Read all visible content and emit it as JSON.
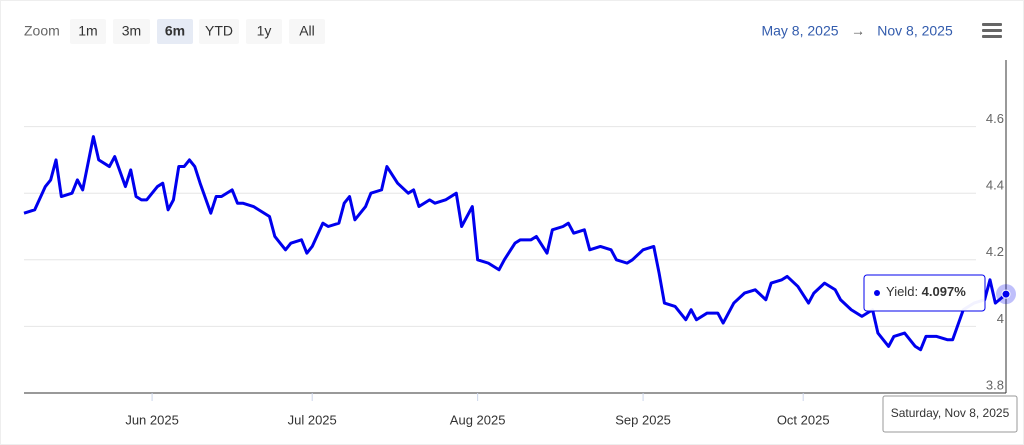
{
  "chart_data": {
    "type": "line",
    "zoom_label": "Zoom",
    "zoom_buttons": [
      "1m",
      "3m",
      "6m",
      "YTD",
      "1y",
      "All"
    ],
    "zoom_selected": "6m",
    "range_start": "May 8, 2025",
    "range_separator": "→",
    "range_end": "Nov 8, 2025",
    "x": [
      "2025-05-08",
      "2025-05-10",
      "2025-05-12",
      "2025-05-13",
      "2025-05-14",
      "2025-05-15",
      "2025-05-17",
      "2025-05-18",
      "2025-05-19",
      "2025-05-21",
      "2025-05-22",
      "2025-05-24",
      "2025-05-25",
      "2025-05-27",
      "2025-05-28",
      "2025-05-29",
      "2025-05-30",
      "2025-05-31",
      "2025-06-02",
      "2025-06-03",
      "2025-06-04",
      "2025-06-05",
      "2025-06-06",
      "2025-06-07",
      "2025-06-08",
      "2025-06-09",
      "2025-06-10",
      "2025-06-12",
      "2025-06-13",
      "2025-06-14",
      "2025-06-16",
      "2025-06-17",
      "2025-06-18",
      "2025-06-20",
      "2025-06-21",
      "2025-06-23",
      "2025-06-24",
      "2025-06-25",
      "2025-06-26",
      "2025-06-27",
      "2025-06-29",
      "2025-06-30",
      "2025-07-01",
      "2025-07-03",
      "2025-07-04",
      "2025-07-06",
      "2025-07-07",
      "2025-07-08",
      "2025-07-09",
      "2025-07-11",
      "2025-07-12",
      "2025-07-14",
      "2025-07-15",
      "2025-07-17",
      "2025-07-19",
      "2025-07-20",
      "2025-07-21",
      "2025-07-23",
      "2025-07-24",
      "2025-07-26",
      "2025-07-28",
      "2025-07-29",
      "2025-07-31",
      "2025-08-01",
      "2025-08-03",
      "2025-08-05",
      "2025-08-06",
      "2025-08-08",
      "2025-08-09",
      "2025-08-11",
      "2025-08-12",
      "2025-08-14",
      "2025-08-15",
      "2025-08-17",
      "2025-08-18",
      "2025-08-19",
      "2025-08-21",
      "2025-08-22",
      "2025-08-24",
      "2025-08-26",
      "2025-08-27",
      "2025-08-29",
      "2025-08-30",
      "2025-09-01",
      "2025-09-03",
      "2025-09-04",
      "2025-09-05",
      "2025-09-07",
      "2025-09-09",
      "2025-09-10",
      "2025-09-11",
      "2025-09-13",
      "2025-09-15",
      "2025-09-16",
      "2025-09-18",
      "2025-09-20",
      "2025-09-22",
      "2025-09-24",
      "2025-09-25",
      "2025-09-27",
      "2025-09-28",
      "2025-09-30",
      "2025-10-02",
      "2025-10-03",
      "2025-10-05",
      "2025-10-07",
      "2025-10-08",
      "2025-10-10",
      "2025-10-12",
      "2025-10-14",
      "2025-10-15",
      "2025-10-17",
      "2025-10-18",
      "2025-10-20",
      "2025-10-22",
      "2025-10-23",
      "2025-10-24",
      "2025-10-26",
      "2025-10-28",
      "2025-10-29",
      "2025-10-31",
      "2025-11-02",
      "2025-11-04",
      "2025-11-05",
      "2025-11-06",
      "2025-11-08"
    ],
    "series": [
      {
        "name": "Yield",
        "color": "#0000ee",
        "values": [
          4.34,
          4.35,
          4.42,
          4.44,
          4.5,
          4.39,
          4.4,
          4.44,
          4.41,
          4.57,
          4.5,
          4.48,
          4.51,
          4.42,
          4.47,
          4.39,
          4.38,
          4.38,
          4.42,
          4.43,
          4.35,
          4.38,
          4.48,
          4.48,
          4.5,
          4.48,
          4.43,
          4.34,
          4.39,
          4.39,
          4.41,
          4.37,
          4.37,
          4.36,
          4.35,
          4.33,
          4.27,
          4.25,
          4.23,
          4.25,
          4.26,
          4.22,
          4.24,
          4.31,
          4.3,
          4.31,
          4.37,
          4.39,
          4.32,
          4.36,
          4.4,
          4.41,
          4.48,
          4.43,
          4.4,
          4.41,
          4.36,
          4.38,
          4.37,
          4.38,
          4.4,
          4.3,
          4.36,
          4.2,
          4.19,
          4.17,
          4.2,
          4.25,
          4.26,
          4.26,
          4.27,
          4.22,
          4.29,
          4.3,
          4.31,
          4.28,
          4.29,
          4.23,
          4.24,
          4.23,
          4.2,
          4.19,
          4.2,
          4.23,
          4.24,
          4.16,
          4.07,
          4.06,
          4.02,
          4.05,
          4.02,
          4.04,
          4.04,
          4.01,
          4.07,
          4.1,
          4.11,
          4.08,
          4.13,
          4.14,
          4.15,
          4.12,
          4.07,
          4.1,
          4.13,
          4.11,
          4.08,
          4.05,
          4.03,
          4.05,
          3.98,
          3.94,
          3.97,
          3.98,
          3.94,
          3.93,
          3.97,
          3.97,
          3.96,
          3.96,
          4.05,
          4.07,
          4.08,
          4.14,
          4.07,
          4.097
        ]
      }
    ],
    "xlim": [
      "2025-05-08",
      "2025-11-08"
    ],
    "xticks": [
      {
        "value": "2025-06-01",
        "label": "Jun 2025"
      },
      {
        "value": "2025-07-01",
        "label": "Jul 2025"
      },
      {
        "value": "2025-08-01",
        "label": "Aug 2025"
      },
      {
        "value": "2025-09-01",
        "label": "Sep 2025"
      },
      {
        "value": "2025-10-01",
        "label": "Oct 2025"
      }
    ],
    "ylim": [
      3.8,
      4.8
    ],
    "yticks": [
      3.8,
      4,
      4.2,
      4.4,
      4.6
    ],
    "grid": true,
    "tooltip": {
      "label": "4.097%",
      "date": "Saturday, Nov 8, 2025"
    }
  }
}
